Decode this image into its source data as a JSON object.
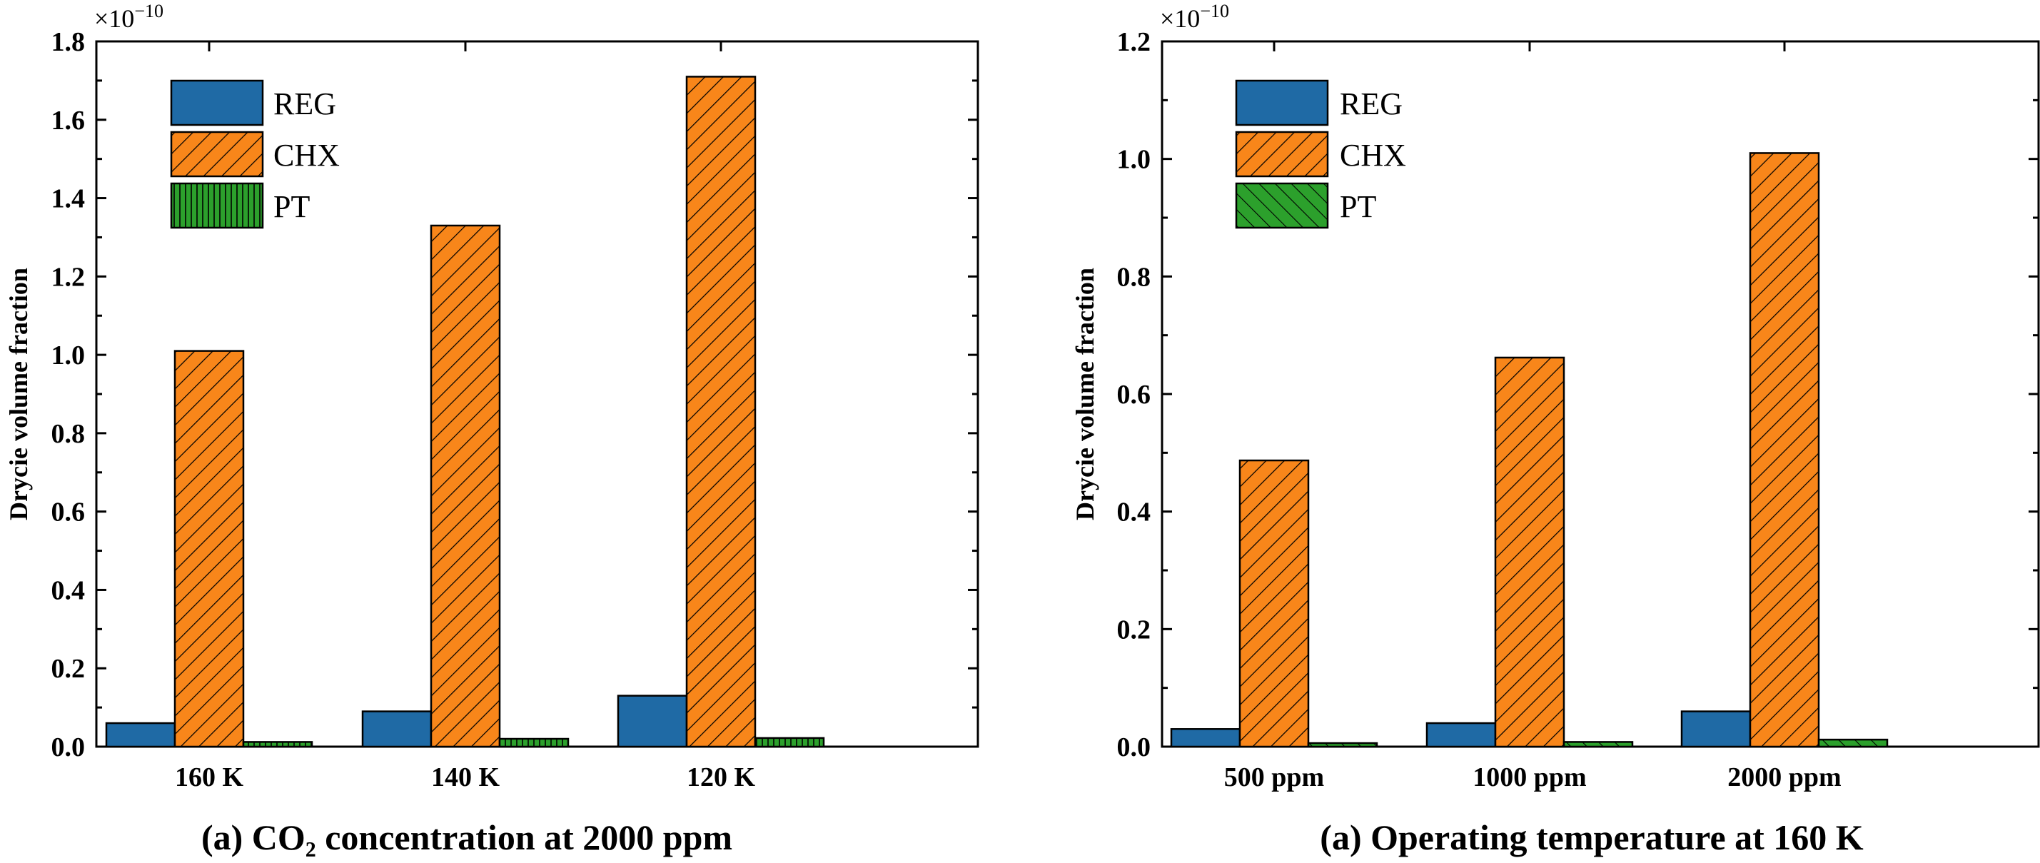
{
  "colors": {
    "reg": "#1f6aa5",
    "chx": "#f8861a",
    "pt": "#2ca02c",
    "axis": "#000000"
  },
  "chart_data": [
    {
      "type": "bar",
      "caption": "(a) CO₂ concentration at 2000 ppm",
      "ylabel": "Drycie volume fraction",
      "y_multiplier": "×10",
      "y_multiplier_exp": "−10",
      "categories": [
        "160 K",
        "140 K",
        "120 K"
      ],
      "ylim": [
        0,
        1.8
      ],
      "yticks": [
        0.0,
        0.2,
        0.4,
        0.6,
        0.8,
        1.0,
        1.2,
        1.4,
        1.6,
        1.8
      ],
      "ytick_labels": [
        "0.0",
        "0.2",
        "0.4",
        "0.6",
        "0.8",
        "1.0",
        "1.2",
        "1.4",
        "1.6",
        "1.8"
      ],
      "legend_position": "top-left",
      "series": [
        {
          "name": "REG",
          "values": [
            0.06,
            0.09,
            0.13
          ]
        },
        {
          "name": "CHX",
          "values": [
            1.01,
            1.33,
            1.71
          ]
        },
        {
          "name": "PT",
          "values": [
            0.012,
            0.02,
            0.022
          ]
        }
      ]
    },
    {
      "type": "bar",
      "caption": "(a) Operating temperature at 160 K",
      "ylabel": "Drycie volume fraction",
      "y_multiplier": "×10",
      "y_multiplier_exp": "−10",
      "categories": [
        "500 ppm",
        "1000 ppm",
        "2000 ppm"
      ],
      "ylim": [
        0,
        1.2
      ],
      "yticks": [
        0.0,
        0.2,
        0.4,
        0.6,
        0.8,
        1.0,
        1.2
      ],
      "ytick_labels": [
        "0.0",
        "0.2",
        "0.4",
        "0.6",
        "0.8",
        "1.0",
        "1.2"
      ],
      "legend_position": "top-left",
      "series": [
        {
          "name": "REG",
          "values": [
            0.03,
            0.04,
            0.06
          ]
        },
        {
          "name": "CHX",
          "values": [
            0.487,
            0.662,
            1.01
          ]
        },
        {
          "name": "PT",
          "values": [
            0.006,
            0.008,
            0.012
          ]
        }
      ]
    }
  ]
}
